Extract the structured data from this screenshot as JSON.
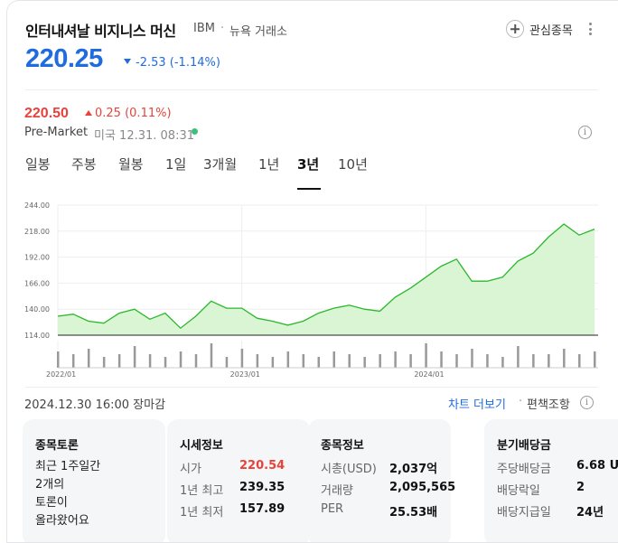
{
  "header": {
    "title": "인터내셔날 비지니스 머신",
    "ticker": "IBM",
    "separator": "·",
    "exchange": "뉴욕 거래소",
    "watch_label": "관심종목"
  },
  "quote": {
    "price": "220.25",
    "change": "-2.53",
    "change_pct": "(-1.14%)",
    "direction": "down",
    "color": "#1f6cde"
  },
  "premarket": {
    "price": "220.50",
    "change": "0.25",
    "change_pct": "(0.11%)",
    "label": "Pre-Market",
    "time": "미국 12.31. 08:31",
    "color": "#e8423b"
  },
  "tabs": [
    {
      "label": "일봉"
    },
    {
      "label": "주봉"
    },
    {
      "label": "월봉"
    },
    {
      "label": "1일"
    },
    {
      "label": "3개월"
    },
    {
      "label": "1년"
    },
    {
      "label": "3년",
      "active": true
    },
    {
      "label": "10년"
    }
  ],
  "chart_data": {
    "type": "area",
    "y_ticks": [
      "244.00",
      "218.00",
      "192.00",
      "166.00",
      "140.00",
      "114.00"
    ],
    "ylim": [
      114,
      244
    ],
    "x_tick_labels": [
      "2022/01",
      "2023/01",
      "2024/01"
    ],
    "x": [
      "2022-01",
      "2022-02",
      "2022-03",
      "2022-04",
      "2022-05",
      "2022-06",
      "2022-07",
      "2022-08",
      "2022-09",
      "2022-10",
      "2022-11",
      "2022-12",
      "2023-01",
      "2023-02",
      "2023-03",
      "2023-04",
      "2023-05",
      "2023-06",
      "2023-07",
      "2023-08",
      "2023-09",
      "2023-10",
      "2023-11",
      "2023-12",
      "2024-01",
      "2024-02",
      "2024-03",
      "2024-04",
      "2024-05",
      "2024-06",
      "2024-07",
      "2024-08",
      "2024-09",
      "2024-10",
      "2024-11",
      "2024-12"
    ],
    "values": [
      133,
      135,
      128,
      126,
      136,
      140,
      130,
      136,
      121,
      133,
      148,
      141,
      141,
      131,
      128,
      124,
      128,
      136,
      141,
      144,
      140,
      138,
      152,
      161,
      172,
      183,
      190,
      168,
      168,
      172,
      188,
      196,
      212,
      225,
      214,
      220
    ],
    "volume_relative": [
      0.6,
      0.5,
      0.7,
      0.4,
      0.5,
      0.8,
      0.5,
      0.4,
      0.6,
      0.5,
      0.9,
      0.4,
      0.7,
      0.5,
      0.4,
      0.6,
      0.5,
      0.4,
      0.6,
      0.5,
      0.4,
      0.5,
      0.6,
      0.5,
      0.9,
      0.6,
      0.5,
      0.7,
      0.5,
      0.4,
      0.8,
      0.5,
      0.5,
      0.7,
      0.5,
      0.6
    ],
    "line_color": "#2bb82b",
    "fill_color": "#d9f5d4",
    "grid": true
  },
  "status": {
    "date": "2024.12.30 16:00 장마감",
    "chart_more": "차트 더보기",
    "sep": "·",
    "trade_lookup": "편책조항"
  },
  "boxes": {
    "forum": {
      "title": "종목토론",
      "lines": [
        "최근 1주일간",
        "2개의",
        "토론이",
        "올라왔어요"
      ]
    },
    "market": {
      "title": "시세정보",
      "rows": [
        {
          "label": "시가",
          "value": "220.54"
        },
        {
          "label": "1년 최고",
          "value": "239.35"
        },
        {
          "label": "1년 최저",
          "value": "157.89"
        }
      ]
    },
    "stock": {
      "title": "종목정보",
      "rows": [
        {
          "label": "시총(USD)",
          "value": "2,037억"
        },
        {
          "label": "거래량",
          "value": "2,095,565"
        },
        {
          "label": "PER",
          "value": "25.53배"
        }
      ]
    },
    "dividend": {
      "title": "분기배당금",
      "rows": [
        {
          "label": "주당배당금",
          "value": "6.68 U"
        },
        {
          "label": "배당락일",
          "value": "2"
        },
        {
          "label": "배당지급일",
          "value": "24년"
        }
      ]
    }
  }
}
